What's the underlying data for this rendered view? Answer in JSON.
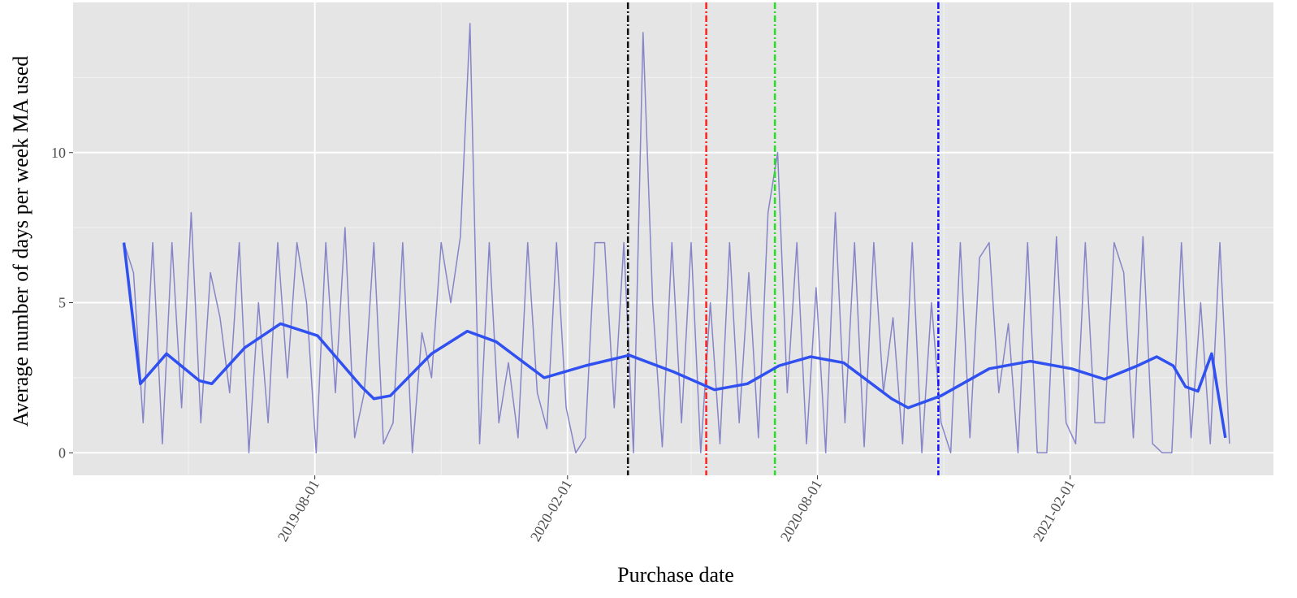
{
  "chart_data": {
    "type": "line",
    "x_label": "Purchase date",
    "y_label": "Average number of days per week MA used",
    "xlim": [
      "2019-02-06",
      "2021-06-29"
    ],
    "xticks": [
      "2019-08-01",
      "2020-02-01",
      "2020-08-01",
      "2021-02-01"
    ],
    "x_minor_ticks": [
      "2019-05-01",
      "2019-11-01",
      "2020-05-01",
      "2020-11-01",
      "2021-05-01"
    ],
    "ylim": [
      -0.75,
      15
    ],
    "yticks": [
      0,
      5,
      10
    ],
    "y_minor_ticks": [
      2.5,
      7.5,
      12.5
    ],
    "grid": true,
    "series": [
      {
        "color": "#8585c8",
        "width": 1.5,
        "x": [
          "2019-03-15",
          "2019-03-22",
          "2019-03-29",
          "2019-04-05",
          "2019-04-12",
          "2019-04-19",
          "2019-04-26",
          "2019-05-03",
          "2019-05-10",
          "2019-05-17",
          "2019-05-24",
          "2019-05-31",
          "2019-06-07",
          "2019-06-14",
          "2019-06-21",
          "2019-06-28",
          "2019-07-05",
          "2019-07-12",
          "2019-07-19",
          "2019-07-26",
          "2019-08-02",
          "2019-08-09",
          "2019-08-16",
          "2019-08-23",
          "2019-08-30",
          "2019-09-06",
          "2019-09-13",
          "2019-09-20",
          "2019-09-27",
          "2019-10-04",
          "2019-10-11",
          "2019-10-18",
          "2019-10-25",
          "2019-11-01",
          "2019-11-08",
          "2019-11-15",
          "2019-11-22",
          "2019-11-29",
          "2019-12-06",
          "2019-12-13",
          "2019-12-20",
          "2019-12-27",
          "2020-01-03",
          "2020-01-10",
          "2020-01-17",
          "2020-01-24",
          "2020-01-31",
          "2020-02-07",
          "2020-02-14",
          "2020-02-21",
          "2020-02-28",
          "2020-03-06",
          "2020-03-13",
          "2020-03-20",
          "2020-03-27",
          "2020-04-03",
          "2020-04-10",
          "2020-04-17",
          "2020-04-24",
          "2020-05-01",
          "2020-05-08",
          "2020-05-15",
          "2020-05-22",
          "2020-05-29",
          "2020-06-05",
          "2020-06-12",
          "2020-06-19",
          "2020-06-26",
          "2020-07-03",
          "2020-07-10",
          "2020-07-17",
          "2020-07-24",
          "2020-07-31",
          "2020-08-07",
          "2020-08-14",
          "2020-08-21",
          "2020-08-28",
          "2020-09-04",
          "2020-09-11",
          "2020-09-18",
          "2020-09-25",
          "2020-10-02",
          "2020-10-09",
          "2020-10-16",
          "2020-10-23",
          "2020-10-30",
          "2020-11-06",
          "2020-11-13",
          "2020-11-20",
          "2020-11-27",
          "2020-12-04",
          "2020-12-11",
          "2020-12-18",
          "2020-12-25",
          "2021-01-01",
          "2021-01-08",
          "2021-01-15",
          "2021-01-22",
          "2021-01-29",
          "2021-02-05",
          "2021-02-12",
          "2021-02-19",
          "2021-02-26",
          "2021-03-05",
          "2021-03-12",
          "2021-03-19",
          "2021-03-26",
          "2021-04-02",
          "2021-04-09",
          "2021-04-16",
          "2021-04-23",
          "2021-04-30",
          "2021-05-07",
          "2021-05-14",
          "2021-05-21",
          "2021-05-28"
        ],
        "values": [
          7,
          6,
          1,
          7,
          0.3,
          7,
          1.5,
          8,
          1,
          6,
          4.5,
          2,
          7,
          0,
          5,
          1,
          7,
          2.5,
          7,
          5,
          0,
          7,
          2,
          7.5,
          0.5,
          2,
          7,
          0.3,
          1,
          7,
          0,
          4,
          2.5,
          7,
          5,
          7.2,
          14.3,
          0.3,
          7,
          1,
          3,
          0.5,
          7,
          2,
          0.8,
          7,
          1.5,
          0,
          0.5,
          7,
          7,
          1.5,
          7,
          0,
          14,
          5,
          0.2,
          7,
          1,
          7,
          0,
          5,
          0.3,
          7,
          1,
          6,
          0.5,
          8,
          10,
          2,
          7,
          0.3,
          5.5,
          0,
          8,
          1,
          7,
          0.2,
          7,
          2,
          4.5,
          0.3,
          7,
          0,
          5,
          1,
          0,
          7,
          0.5,
          6.5,
          7,
          2,
          4.3,
          0,
          7,
          0,
          0,
          7.2,
          1,
          0.3,
          7,
          1,
          1,
          7,
          6,
          0.5,
          7.2,
          0.3,
          0,
          0,
          7,
          0.5,
          5,
          0.3,
          7,
          0.3
        ]
      },
      {
        "color": "#3050f0",
        "width": 3.5,
        "x": [
          "2019-03-15",
          "2019-03-27",
          "2019-04-15",
          "2019-05-09",
          "2019-05-18",
          "2019-06-11",
          "2019-07-07",
          "2019-08-03",
          "2019-09-04",
          "2019-09-13",
          "2019-09-25",
          "2019-10-25",
          "2019-11-20",
          "2019-12-11",
          "2020-01-15",
          "2020-02-14",
          "2020-03-17",
          "2020-04-18",
          "2020-05-18",
          "2020-06-11",
          "2020-07-04",
          "2020-07-27",
          "2020-08-20",
          "2020-09-24",
          "2020-10-06",
          "2020-10-30",
          "2020-12-04",
          "2021-01-03",
          "2021-02-02",
          "2021-02-26",
          "2021-03-22",
          "2021-04-05",
          "2021-04-17",
          "2021-04-26",
          "2021-05-05",
          "2021-05-15",
          "2021-05-25"
        ],
        "values": [
          7.0,
          2.3,
          3.3,
          2.4,
          2.3,
          3.5,
          4.3,
          3.9,
          2.2,
          1.8,
          1.9,
          3.3,
          4.05,
          3.7,
          2.5,
          2.9,
          3.25,
          2.7,
          2.1,
          2.3,
          2.9,
          3.2,
          3.0,
          1.8,
          1.5,
          1.9,
          2.8,
          3.05,
          2.8,
          2.45,
          2.9,
          3.2,
          2.9,
          2.2,
          2.05,
          3.3,
          0.5
        ]
      }
    ],
    "vlines": [
      {
        "x": "2020-03-16",
        "color": "#111111"
      },
      {
        "x": "2020-05-12",
        "color": "#ff2020"
      },
      {
        "x": "2020-07-01",
        "color": "#20e020"
      },
      {
        "x": "2020-10-28",
        "color": "#1010ff"
      }
    ]
  }
}
